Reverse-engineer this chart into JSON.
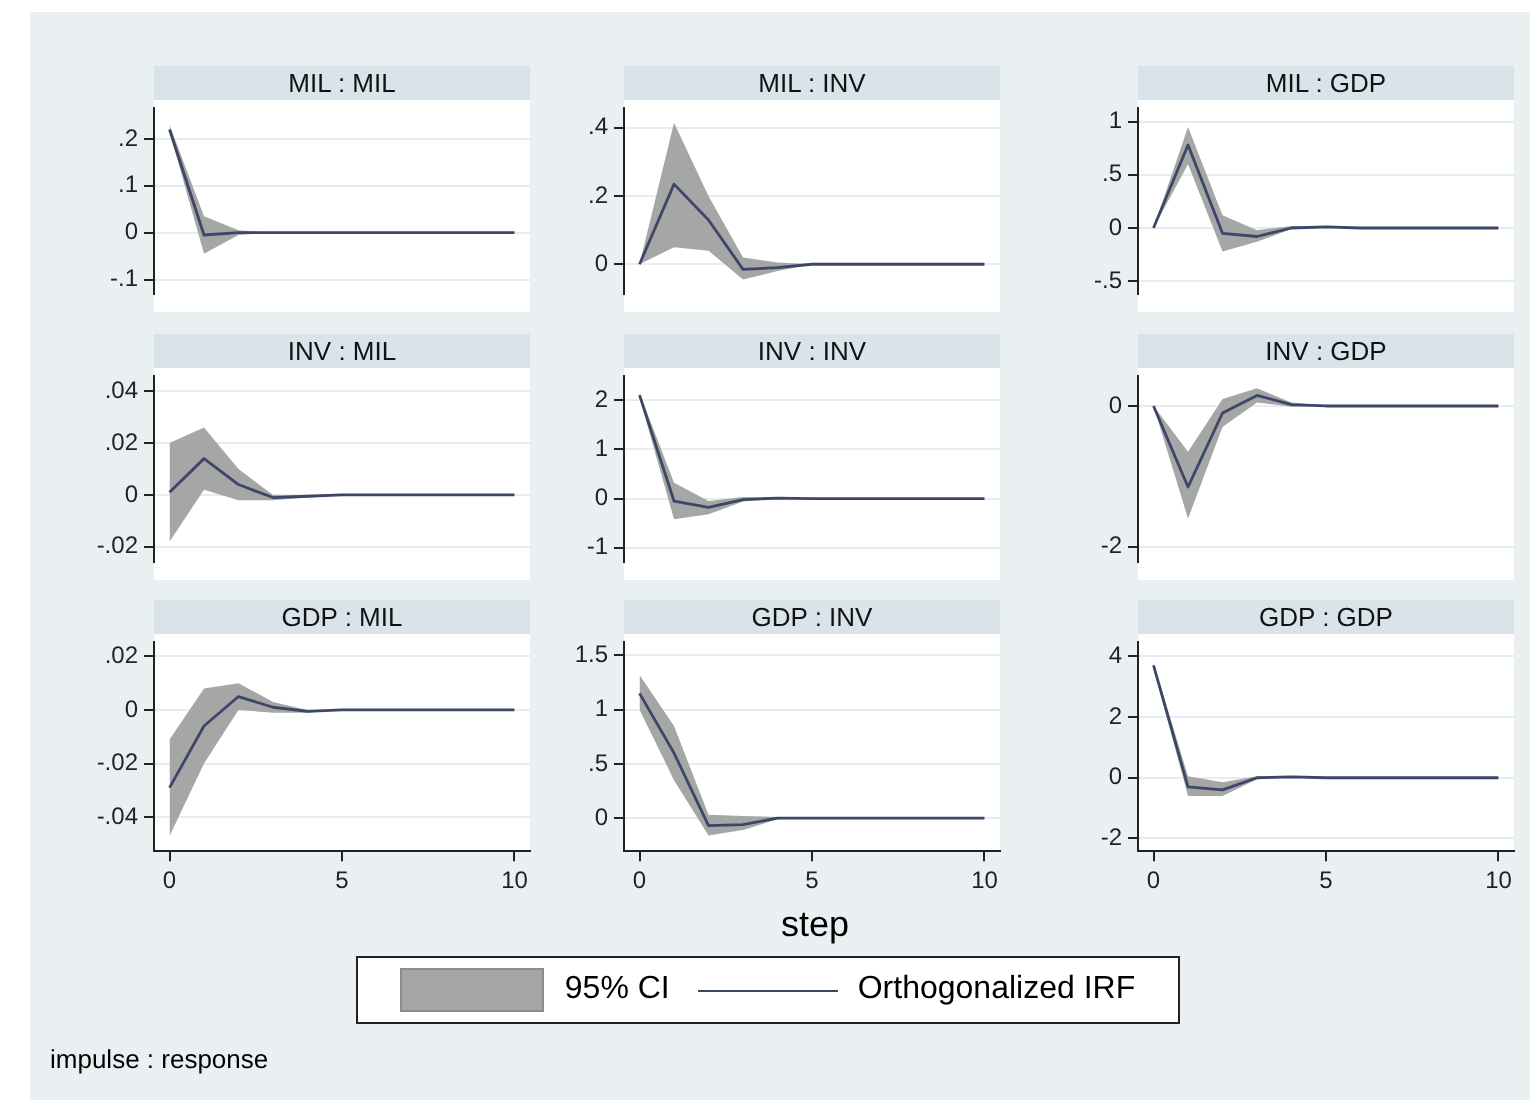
{
  "chart_data": [
    {
      "type": "line",
      "title": "MIL : MIL",
      "x": [
        0,
        1,
        2,
        3,
        4,
        5,
        6,
        7,
        8,
        9,
        10
      ],
      "xlim": [
        -0.45,
        10.45
      ],
      "xticks": [
        0,
        5,
        10
      ],
      "ylim": [
        -0.13,
        0.265
      ],
      "yticks": [
        {
          "value": -0.1,
          "label": "-.1"
        },
        0,
        {
          "value": 0.1,
          "label": ".1"
        },
        {
          "value": 0.2,
          "label": ".2"
        }
      ],
      "grid": "y",
      "tick_labels": "y",
      "series": [
        {
          "color": "#a6a6a6",
          "values": [
            null,
            null,
            null,
            null,
            null,
            null,
            null,
            null,
            null,
            null,
            null
          ],
          "lower": [
            0.215,
            -0.045,
            -0.005,
            0,
            0,
            0,
            0,
            0,
            0,
            0,
            0
          ],
          "upper": [
            0.23,
            0.035,
            0.005,
            0,
            0,
            0,
            0,
            0,
            0,
            0,
            0
          ]
        },
        {
          "color": "#3c4669",
          "values": [
            0.22,
            -0.005,
            0,
            0,
            0,
            0,
            0,
            0,
            0,
            0,
            0
          ]
        }
      ]
    },
    {
      "type": "line",
      "title": "MIL : INV",
      "x": [
        0,
        1,
        2,
        3,
        4,
        5,
        6,
        7,
        8,
        9,
        10
      ],
      "xlim": [
        -0.45,
        10.45
      ],
      "xticks": [
        0,
        5,
        10
      ],
      "ylim": [
        -0.086,
        0.457
      ],
      "yticks": [
        0,
        {
          "value": 0.2,
          "label": ".2"
        },
        {
          "value": 0.4,
          "label": ".4"
        }
      ],
      "grid": "y",
      "tick_labels": "y",
      "series": [
        {
          "color": "#a6a6a6",
          "values": [
            null,
            null,
            null,
            null,
            null,
            null,
            null,
            null,
            null,
            null,
            null
          ],
          "lower": [
            0,
            0.05,
            0.04,
            -0.045,
            -0.02,
            0,
            0,
            0,
            0,
            0,
            0
          ],
          "upper": [
            0,
            0.415,
            0.2,
            0.02,
            0.005,
            0,
            0,
            0,
            0,
            0,
            0
          ]
        },
        {
          "color": "#3c4669",
          "values": [
            0,
            0.235,
            0.13,
            -0.015,
            -0.01,
            0,
            0,
            0,
            0,
            0,
            0
          ]
        }
      ]
    },
    {
      "type": "line",
      "title": "MIL : GDP",
      "x": [
        0,
        1,
        2,
        3,
        4,
        5,
        6,
        7,
        8,
        9,
        10
      ],
      "xlim": [
        -0.45,
        10.45
      ],
      "xticks": [
        0,
        5,
        10
      ],
      "ylim": [
        -0.617,
        1.125
      ],
      "yticks": [
        {
          "value": -0.5,
          "label": "-.5"
        },
        0,
        {
          "value": 0.5,
          "label": ".5"
        },
        1
      ],
      "grid": "y",
      "tick_labels": "y",
      "series": [
        {
          "color": "#a6a6a6",
          "values": [
            null,
            null,
            null,
            null,
            null,
            null,
            null,
            null,
            null,
            null,
            null
          ],
          "lower": [
            0,
            0.6,
            -0.22,
            -0.13,
            -0.01,
            0,
            0,
            0,
            0,
            0,
            0
          ],
          "upper": [
            0,
            0.95,
            0.12,
            -0.02,
            0.02,
            0.01,
            0,
            0,
            0,
            0,
            0
          ]
        },
        {
          "color": "#3c4669",
          "values": [
            0,
            0.78,
            -0.05,
            -0.08,
            0,
            0.01,
            0,
            0,
            0,
            0,
            0
          ]
        }
      ]
    },
    {
      "type": "line",
      "title": "INV : MIL",
      "x": [
        0,
        1,
        2,
        3,
        4,
        5,
        6,
        7,
        8,
        9,
        10
      ],
      "xlim": [
        -0.45,
        10.45
      ],
      "xticks": [
        0,
        5,
        10
      ],
      "ylim": [
        -0.0257,
        0.0457
      ],
      "yticks": [
        {
          "value": -0.02,
          "label": "-.02"
        },
        0,
        {
          "value": 0.02,
          "label": ".02"
        },
        {
          "value": 0.04,
          "label": ".04"
        }
      ],
      "grid": "y",
      "tick_labels": "y",
      "series": [
        {
          "color": "#a6a6a6",
          "values": [
            null,
            null,
            null,
            null,
            null,
            null,
            null,
            null,
            null,
            null,
            null
          ],
          "lower": [
            -0.018,
            0.002,
            -0.002,
            -0.002,
            -0.001,
            0,
            0,
            0,
            0,
            0,
            0
          ],
          "upper": [
            0.02,
            0.026,
            0.01,
            0,
            0,
            0,
            0,
            0,
            0,
            0,
            0
          ]
        },
        {
          "color": "#3c4669",
          "values": [
            0.001,
            0.014,
            0.004,
            -0.001,
            -0.0005,
            0,
            0,
            0,
            0,
            0,
            0
          ]
        }
      ]
    },
    {
      "type": "line",
      "title": "INV : INV",
      "x": [
        0,
        1,
        2,
        3,
        4,
        5,
        6,
        7,
        8,
        9,
        10
      ],
      "xlim": [
        -0.45,
        10.45
      ],
      "xticks": [
        0,
        5,
        10
      ],
      "ylim": [
        -1.28,
        2.48
      ],
      "yticks": [
        -1,
        0,
        1,
        2
      ],
      "grid": "y",
      "tick_labels": "y",
      "series": [
        {
          "color": "#a6a6a6",
          "values": [
            null,
            null,
            null,
            null,
            null,
            null,
            null,
            null,
            null,
            null,
            null
          ],
          "lower": [
            2.05,
            -0.42,
            -0.32,
            -0.06,
            -0.01,
            0,
            0,
            0,
            0,
            0,
            0
          ],
          "upper": [
            2.15,
            0.32,
            -0.05,
            0.03,
            0.02,
            0,
            0,
            0,
            0,
            0,
            0
          ]
        },
        {
          "color": "#3c4669",
          "values": [
            2.1,
            -0.05,
            -0.18,
            -0.02,
            0.01,
            0,
            0,
            0,
            0,
            0,
            0
          ]
        }
      ]
    },
    {
      "type": "line",
      "title": "INV : GDP",
      "x": [
        0,
        1,
        2,
        3,
        4,
        5,
        6,
        7,
        8,
        9,
        10
      ],
      "xlim": [
        -0.45,
        10.45
      ],
      "xticks": [
        0,
        5,
        10
      ],
      "ylim": [
        -2.21,
        0.42
      ],
      "yticks": [
        -2,
        0
      ],
      "grid": "y",
      "tick_labels": "y",
      "series": [
        {
          "color": "#a6a6a6",
          "values": [
            null,
            null,
            null,
            null,
            null,
            null,
            null,
            null,
            null,
            null,
            null
          ],
          "lower": [
            0,
            -1.6,
            -0.3,
            0.05,
            -0.01,
            0,
            0,
            0,
            0,
            0,
            0
          ],
          "upper": [
            0,
            -0.65,
            0.1,
            0.25,
            0.05,
            0,
            0,
            0,
            0,
            0,
            0
          ]
        },
        {
          "color": "#3c4669",
          "values": [
            0,
            -1.15,
            -0.1,
            0.15,
            0.02,
            0,
            0,
            0,
            0,
            0,
            0
          ]
        }
      ]
    },
    {
      "type": "line",
      "title": "GDP : MIL",
      "x": [
        0,
        1,
        2,
        3,
        4,
        5,
        6,
        7,
        8,
        9,
        10
      ],
      "xlim": [
        -0.45,
        10.45
      ],
      "xticks": [
        0,
        5,
        10
      ],
      "ylim": [
        -0.0527,
        0.0252
      ],
      "yticks": [
        {
          "value": -0.04,
          "label": "-.04"
        },
        {
          "value": -0.02,
          "label": "-.02"
        },
        0,
        {
          "value": 0.02,
          "label": ".02"
        }
      ],
      "grid": "y",
      "series": [
        {
          "color": "#a6a6a6",
          "values": [
            null,
            null,
            null,
            null,
            null,
            null,
            null,
            null,
            null,
            null,
            null
          ],
          "lower": [
            -0.047,
            -0.02,
            0,
            -0.001,
            -0.001,
            0,
            0,
            0,
            0,
            0,
            0
          ],
          "upper": [
            -0.011,
            0.008,
            0.01,
            0.003,
            0,
            0,
            0,
            0,
            0,
            0,
            0
          ]
        },
        {
          "color": "#3c4669",
          "values": [
            -0.029,
            -0.006,
            0.005,
            0.001,
            -0.0005,
            0,
            0,
            0,
            0,
            0,
            0
          ]
        }
      ]
    },
    {
      "type": "line",
      "title": "GDP : INV",
      "x": [
        0,
        1,
        2,
        3,
        4,
        5,
        6,
        7,
        8,
        9,
        10
      ],
      "xlim": [
        -0.45,
        10.45
      ],
      "xticks": [
        0,
        5,
        10
      ],
      "ylim": [
        -0.305,
        1.62
      ],
      "yticks": [
        0,
        {
          "value": 0.5,
          "label": ".5"
        },
        1,
        1.5
      ],
      "grid": "y",
      "xlabel": "step",
      "legend": "bottom",
      "annotations": [
        "impulse : response"
      ],
      "series": [
        {
          "name": "95% CI",
          "color": "#a6a6a6",
          "values": [
            null,
            null,
            null,
            null,
            null,
            null,
            null,
            null,
            null,
            null,
            null
          ],
          "lower": [
            1.0,
            0.35,
            -0.16,
            -0.11,
            -0.01,
            0,
            0,
            0,
            0,
            0,
            0
          ],
          "upper": [
            1.32,
            0.85,
            0.03,
            0.02,
            0.01,
            0,
            0,
            0,
            0,
            0,
            0
          ]
        },
        {
          "name": "Orthogonalized IRF",
          "color": "#3c4669",
          "values": [
            1.15,
            0.6,
            -0.07,
            -0.06,
            0,
            0,
            0,
            0,
            0,
            0,
            0
          ]
        }
      ]
    },
    {
      "type": "line",
      "title": "GDP : GDP",
      "x": [
        0,
        1,
        2,
        3,
        4,
        5,
        6,
        7,
        8,
        9,
        10
      ],
      "xlim": [
        -0.45,
        10.45
      ],
      "xticks": [
        0,
        5,
        10
      ],
      "ylim": [
        -2.42,
        4.46
      ],
      "yticks": [
        -2,
        0,
        2,
        4
      ],
      "grid": "y",
      "series": [
        {
          "color": "#a6a6a6",
          "values": [
            null,
            null,
            null,
            null,
            null,
            null,
            null,
            null,
            null,
            null,
            null
          ],
          "lower": [
            3.6,
            -0.6,
            -0.6,
            -0.05,
            0,
            0,
            0,
            0,
            0,
            0,
            0
          ],
          "upper": [
            3.8,
            0.05,
            -0.15,
            0.05,
            0.05,
            0,
            0,
            0,
            0,
            0,
            0
          ]
        },
        {
          "color": "#3c4669",
          "values": [
            3.7,
            -0.3,
            -0.4,
            0,
            0.03,
            0,
            0,
            0,
            0,
            0,
            0
          ]
        }
      ]
    }
  ]
}
